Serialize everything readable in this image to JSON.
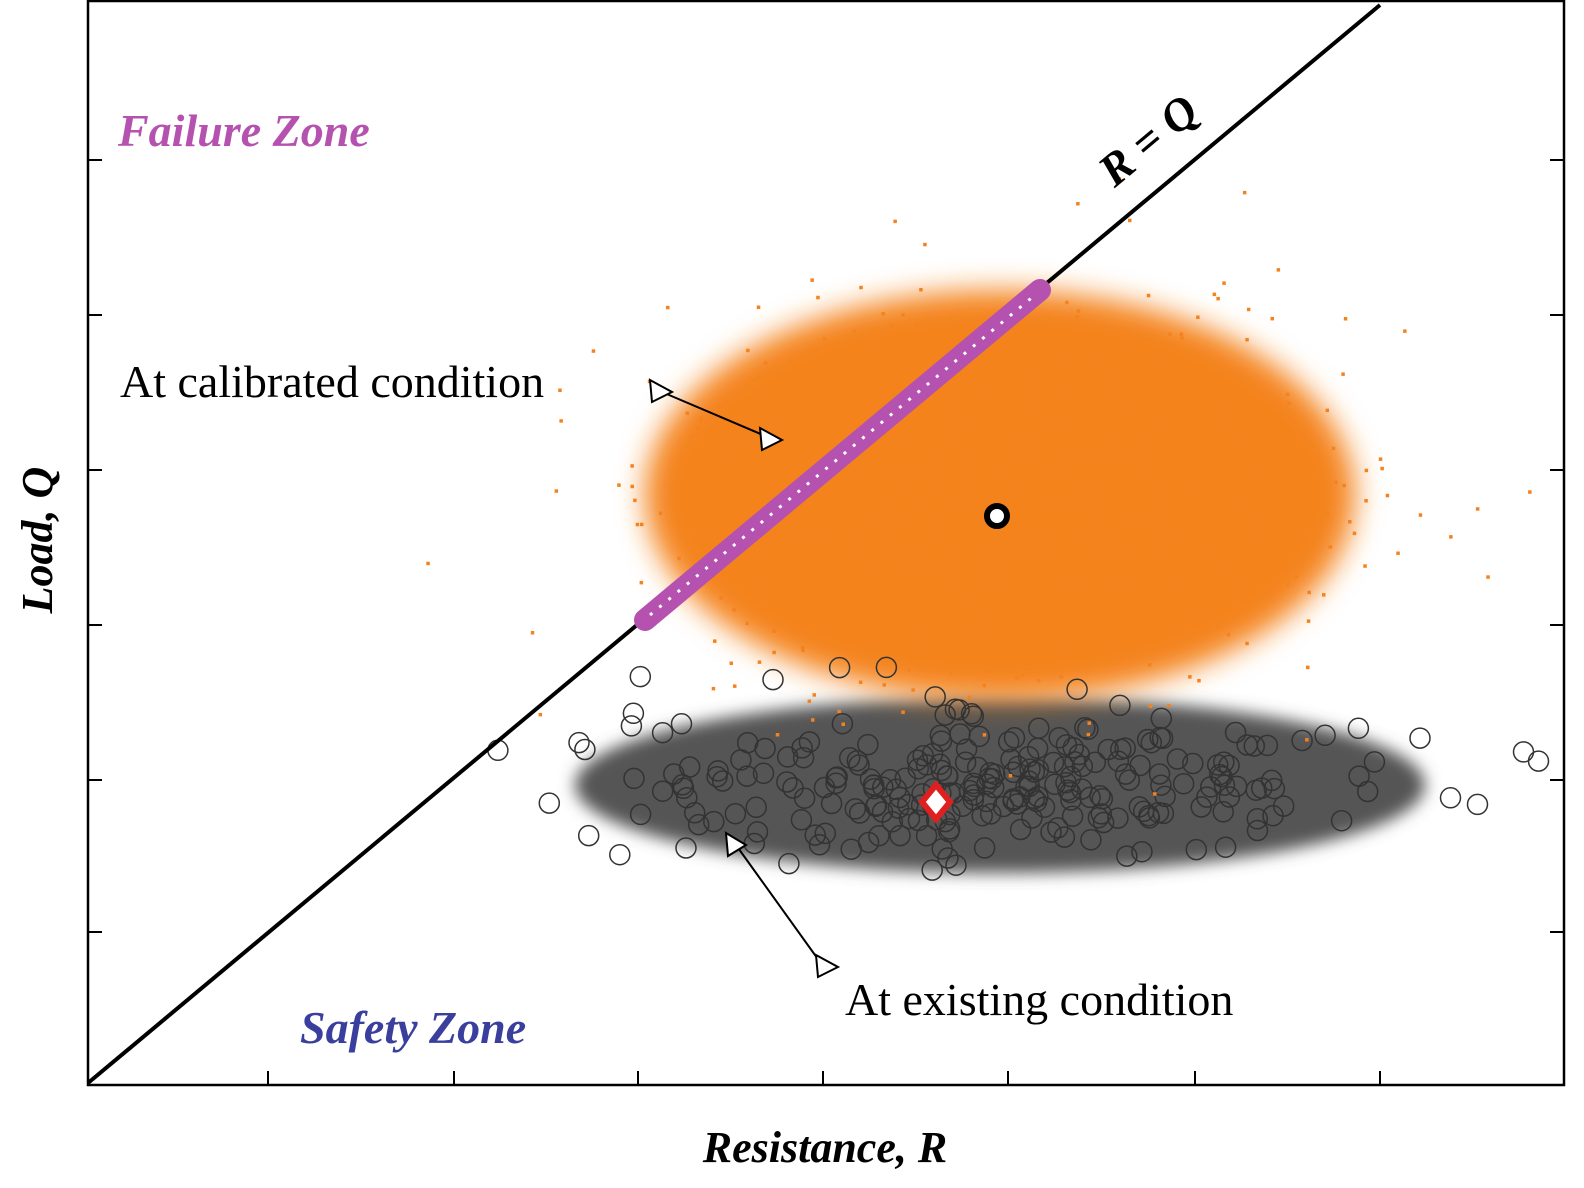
{
  "zones": {
    "failure": "Failure Zone",
    "safety": "Safety Zone"
  },
  "limit_line": "R = Q",
  "annotations": {
    "calibrated": "At calibrated condition",
    "existing": "At existing condition"
  },
  "axes": {
    "y_label": "Load, Q",
    "x_label": "Resistance, R"
  }
}
